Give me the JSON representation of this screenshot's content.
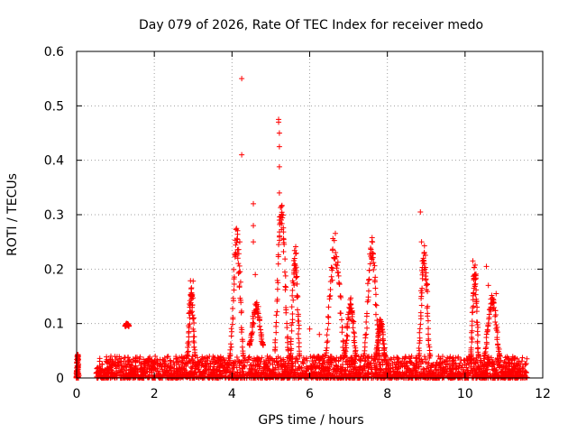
{
  "chart_data": {
    "type": "scatter",
    "title": "Day 079 of 2026, Rate Of TEC Index for receiver medo",
    "xlabel": "GPS time / hours",
    "ylabel": "ROTI / TECUs",
    "xlim": [
      0,
      12
    ],
    "ylim": [
      0,
      0.6
    ],
    "xticks": [
      0,
      2,
      4,
      6,
      8,
      10,
      12
    ],
    "yticks": [
      0,
      0.1,
      0.2,
      0.3,
      0.4,
      0.5,
      0.6
    ],
    "xtick_labels": [
      "0",
      "2",
      "4",
      "6",
      "8",
      "10",
      "12"
    ],
    "ytick_labels": [
      "0",
      "0.1",
      "0.2",
      "0.3",
      "0.4",
      "0.5",
      "0.6"
    ],
    "grid": true,
    "marker": "+",
    "series_color": "#ff0000",
    "background_band": {
      "x_range": [
        0.5,
        11.6
      ],
      "y_range": [
        0.0,
        0.04
      ],
      "note": "dense cloud of low ROTI values"
    },
    "arcs": [
      {
        "x_range": [
          0.0,
          0.05
        ],
        "y_range": [
          0.0,
          0.045
        ]
      },
      {
        "x_range": [
          1.25,
          1.35
        ],
        "y_range": [
          0.095,
          0.1
        ]
      },
      {
        "x_range": [
          2.85,
          3.05
        ],
        "y_range": [
          0.04,
          0.18
        ]
      },
      {
        "x_range": [
          3.95,
          4.3
        ],
        "y_range": [
          0.04,
          0.28
        ]
      },
      {
        "x_range": [
          4.45,
          4.8
        ],
        "y_range": [
          0.06,
          0.14
        ]
      },
      {
        "x_range": [
          5.1,
          5.45
        ],
        "y_range": [
          0.05,
          0.34
        ]
      },
      {
        "x_range": [
          5.5,
          5.75
        ],
        "y_range": [
          0.04,
          0.25
        ]
      },
      {
        "x_range": [
          6.4,
          6.9
        ],
        "y_range": [
          0.04,
          0.27
        ]
      },
      {
        "x_range": [
          6.9,
          7.2
        ],
        "y_range": [
          0.04,
          0.15
        ]
      },
      {
        "x_range": [
          7.4,
          7.8
        ],
        "y_range": [
          0.04,
          0.26
        ]
      },
      {
        "x_range": [
          7.7,
          7.95
        ],
        "y_range": [
          0.04,
          0.11
        ]
      },
      {
        "x_range": [
          8.8,
          9.1
        ],
        "y_range": [
          0.04,
          0.25
        ]
      },
      {
        "x_range": [
          10.15,
          10.35
        ],
        "y_range": [
          0.04,
          0.21
        ]
      },
      {
        "x_range": [
          10.5,
          10.9
        ],
        "y_range": [
          0.04,
          0.16
        ]
      }
    ],
    "points": [
      {
        "x": 4.25,
        "y": 0.55
      },
      {
        "x": 4.25,
        "y": 0.41
      },
      {
        "x": 5.2,
        "y": 0.475
      },
      {
        "x": 5.2,
        "y": 0.47
      },
      {
        "x": 5.22,
        "y": 0.45
      },
      {
        "x": 5.22,
        "y": 0.425
      },
      {
        "x": 5.22,
        "y": 0.388
      },
      {
        "x": 5.22,
        "y": 0.34
      },
      {
        "x": 5.22,
        "y": 0.29
      },
      {
        "x": 5.2,
        "y": 0.245
      },
      {
        "x": 4.55,
        "y": 0.32
      },
      {
        "x": 4.55,
        "y": 0.28
      },
      {
        "x": 4.55,
        "y": 0.25
      },
      {
        "x": 4.6,
        "y": 0.19
      },
      {
        "x": 8.85,
        "y": 0.305
      },
      {
        "x": 8.88,
        "y": 0.25
      },
      {
        "x": 8.9,
        "y": 0.215
      },
      {
        "x": 8.95,
        "y": 0.2
      },
      {
        "x": 4.15,
        "y": 0.22
      },
      {
        "x": 4.2,
        "y": 0.25
      },
      {
        "x": 3.0,
        "y": 0.178
      },
      {
        "x": 2.97,
        "y": 0.15
      },
      {
        "x": 2.95,
        "y": 0.12
      },
      {
        "x": 1.28,
        "y": 0.1
      },
      {
        "x": 1.3,
        "y": 0.097
      },
      {
        "x": 6.25,
        "y": 0.08
      },
      {
        "x": 6.0,
        "y": 0.09
      },
      {
        "x": 10.2,
        "y": 0.215
      },
      {
        "x": 10.25,
        "y": 0.19
      },
      {
        "x": 10.55,
        "y": 0.205
      },
      {
        "x": 10.6,
        "y": 0.17
      },
      {
        "x": 10.8,
        "y": 0.155
      }
    ]
  }
}
